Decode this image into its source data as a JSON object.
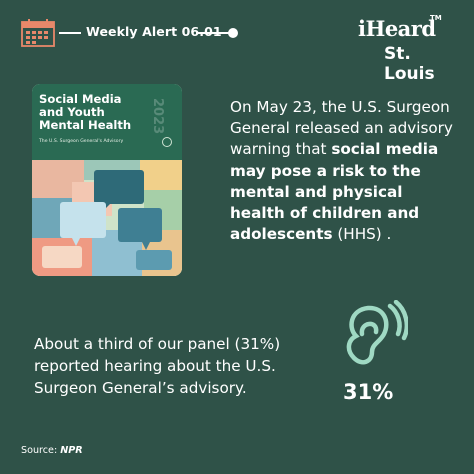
{
  "header": {
    "calendar_icon": "calendar-icon",
    "alert_title": "Weekly Alert 06.01"
  },
  "logo": {
    "name": "iHeard",
    "tm": "TM",
    "city": "St. Louis"
  },
  "cover": {
    "title_line1": "Social Media",
    "title_line2": "and Youth",
    "title_line3": "Mental Health",
    "subtitle": "The U.S. Surgeon General's Advisory",
    "year": "2023"
  },
  "advisory": {
    "part1": "On May 23, the U.S. Surgeon General released an advisory warning that ",
    "bold": "social media may pose a risk to the mental and physical health of children and adolescents",
    "part2": " (HHS) ."
  },
  "panel": {
    "text": "About a third of our panel (31%) reported hearing about the U.S. Surgeon General’s advisory.",
    "percentage": "31%",
    "icon": "ear-icon"
  },
  "source": {
    "label": "Source: ",
    "name": "NPR"
  },
  "colors": {
    "background": "#2f5248",
    "text": "#ffffff",
    "cover_green": "#2a6a53"
  }
}
